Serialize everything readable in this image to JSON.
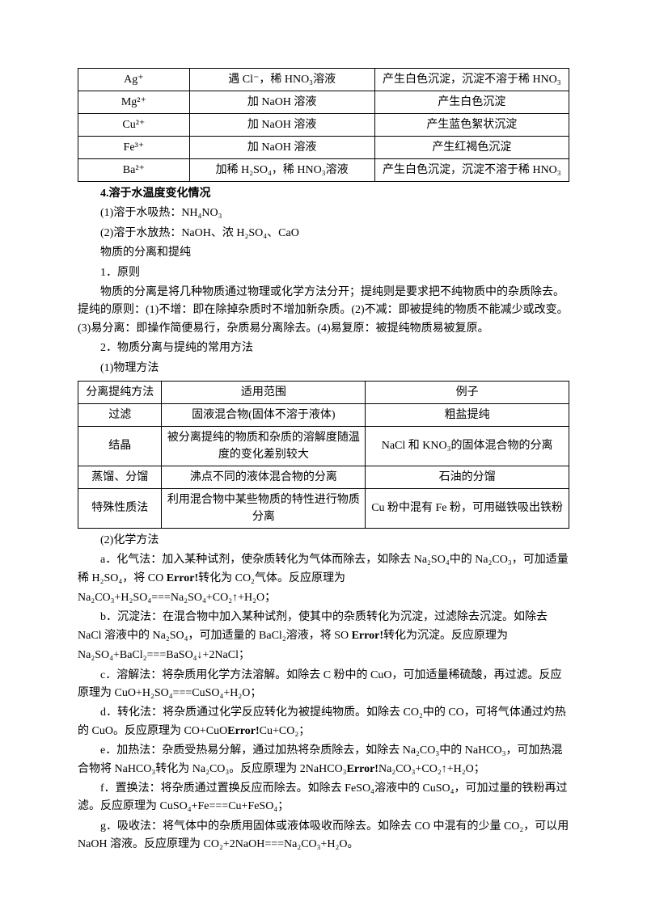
{
  "table1": {
    "rows": [
      [
        "Ag⁺",
        "遇 Cl⁻，稀 HNO₃溶液",
        "产生白色沉淀，沉淀不溶于稀 HNO₃"
      ],
      [
        "Mg²⁺",
        "加 NaOH 溶液",
        "产生白色沉淀"
      ],
      [
        "Cu²⁺",
        "加 NaOH 溶液",
        "产生蓝色絮状沉淀"
      ],
      [
        "Fe³⁺",
        "加 NaOH 溶液",
        "产生红褐色沉淀"
      ],
      [
        "Ba²⁺",
        "加稀 H₂SO₄，稀 HNO₃溶液",
        "产生白色沉淀，沉淀不溶于稀 HNO₃"
      ]
    ]
  },
  "sec4_title": "4.溶于水温度变化情况",
  "sec4_line1": "(1)溶于水吸热：NH₄NO₃",
  "sec4_line2": "(2)溶于水放热：NaOH、浓 H₂SO₄、CaO",
  "sep_title": "物质的分离和提纯",
  "sec1_title": "1．原则",
  "sec1_body": "物质的分离是将几种物质通过物理或化学方法分开；提纯则是要求把不纯物质中的杂质除去。提纯的原则：(1)不增：即在除掉杂质时不增加新杂质。(2)不减：即被提纯的物质不能减少或改变。(3)易分离：即操作简便易行，杂质易分离除去。(4)易复原：被提纯物质易被复原。",
  "sec2_title": "2．物质分离与提纯的常用方法",
  "sec2_sub1": "(1)物理方法",
  "table2": {
    "header": [
      "分离提纯方法",
      "适用范围",
      "例子"
    ],
    "rows": [
      [
        "过滤",
        "固液混合物(固体不溶于液体)",
        "粗盐提纯"
      ],
      [
        "结晶",
        "被分离提纯的物质和杂质的溶解度随温度的变化差别较大",
        "NaCl 和 KNO₃的固体混合物的分离"
      ],
      [
        "蒸馏、分馏",
        "沸点不同的液体混合物的分离",
        "石油的分馏"
      ],
      [
        "特殊性质法",
        "利用混合物中某些物质的特性进行物质分离",
        "Cu 粉中混有 Fe 粉，可用磁铁吸出铁粉"
      ]
    ]
  },
  "sec2_sub2": "(2)化学方法",
  "method_a_1": "a．化气法：加入某种试剂，使杂质转化为气体而除去，如除去 Na₂SO₄中的 Na₂CO₃，可加适量稀 H₂SO₄，将 CO ",
  "method_a_err": "Error!",
  "method_a_2": "转化为 CO₂气体。反应原理为",
  "method_a_eq": "Na₂CO₃+H₂SO₄===Na₂SO₄+CO₂↑+H₂O；",
  "method_b_1": "b．沉淀法：在混合物中加入某种试剂，使其中的杂质转化为沉淀，过滤除去沉淀。如除去 NaCl 溶液中的 Na₂SO₄，可加适量的 BaCl₂溶液，将 SO ",
  "method_b_err": "Error!",
  "method_b_2": "转化为沉淀。反应原理为",
  "method_b_eq": "Na₂SO₄+BaCl₂===BaSO₄↓+2NaCl；",
  "method_c": "c．溶解法：将杂质用化学方法溶解。如除去 C 粉中的 CuO，可加适量稀硫酸，再过滤。反应原理为 CuO+H₂SO₄===CuSO₄+H₂O；",
  "method_d_1": "d．转化法：将杂质通过化学反应转化为被提纯物质。如除去 CO₂中的 CO，可将气体通过灼热的 CuO。反应原理为 CO+CuO",
  "method_d_err": "Error!",
  "method_d_2": "Cu+CO₂；",
  "method_e_1": "e．加热法：杂质受热易分解，通过加热将杂质除去，如除去 Na₂CO₃中的 NaHCO₃，可加热混合物将 NaHCO₃转化为 Na₂CO₃。反应原理为 2NaHCO₃",
  "method_e_err": "Error!",
  "method_e_2": "Na₂CO₃+CO₂↑+H₂O；",
  "method_f": "f．置换法：将杂质通过置换反应而除去。如除去 FeSO₄溶液中的 CuSO₄，可加过量的铁粉再过滤。反应原理为 CuSO₄+Fe===Cu+FeSO₄；",
  "method_g": "g．吸收法：将气体中的杂质用固体或液体吸收而除去。如除去 CO 中混有的少量 CO₂，可以用 NaOH 溶液。反应原理为 CO₂+2NaOH===Na₂CO₃+H₂O。"
}
